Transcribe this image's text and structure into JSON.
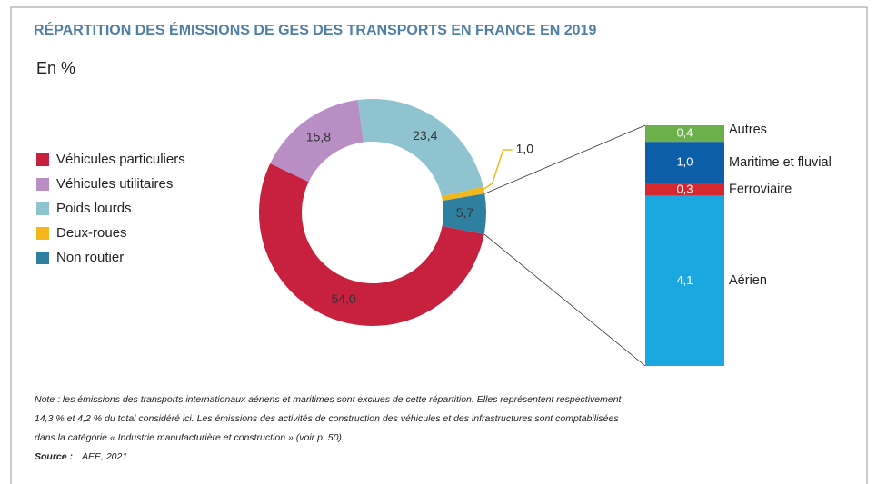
{
  "chart_data": {
    "type": "donut",
    "title": "RÉPARTITION DES ÉMISSIONS DE GES DES TRANSPORTS EN FRANCE EN 2019",
    "subtitle": "En %",
    "categories": [
      "Véhicules particuliers",
      "Véhicules utilitaires",
      "Poids lourds",
      "Deux-roues",
      "Non routier"
    ],
    "values": [
      54.0,
      15.8,
      23.4,
      1.0,
      5.7
    ],
    "value_labels": [
      "54,0",
      "15,8",
      "23,4",
      "1,0",
      "5,7"
    ],
    "colors": [
      "#c8213f",
      "#b98ec4",
      "#8ec3cf",
      "#f2b71c",
      "#2f7fa1"
    ],
    "breakdown": {
      "type": "stacked-bar",
      "categories": [
        "Autres",
        "Maritime et fluvial",
        "Ferroviaire",
        "Aérien"
      ],
      "values": [
        0.4,
        1.0,
        0.3,
        4.1
      ],
      "value_labels": [
        "0,4",
        "1,0",
        "0,3",
        "4,1"
      ],
      "colors": [
        "#6bb04b",
        "#0c5ea8",
        "#d8282f",
        "#1ba8e0"
      ]
    },
    "note": [
      "Note : les émissions des transports internationaux aériens et maritimes sont exclues de cette répartition. Elles représentent respectivement",
      "14,3 % et 4,2 % du total considéré ici. Les émissions des activités de construction des véhicules et des infrastructures sont comptabilisées",
      "dans la catégorie « Industrie manufacturière et construction » (voir p. 50)."
    ],
    "source_label": "Source :",
    "source": "AEE, 2021"
  }
}
